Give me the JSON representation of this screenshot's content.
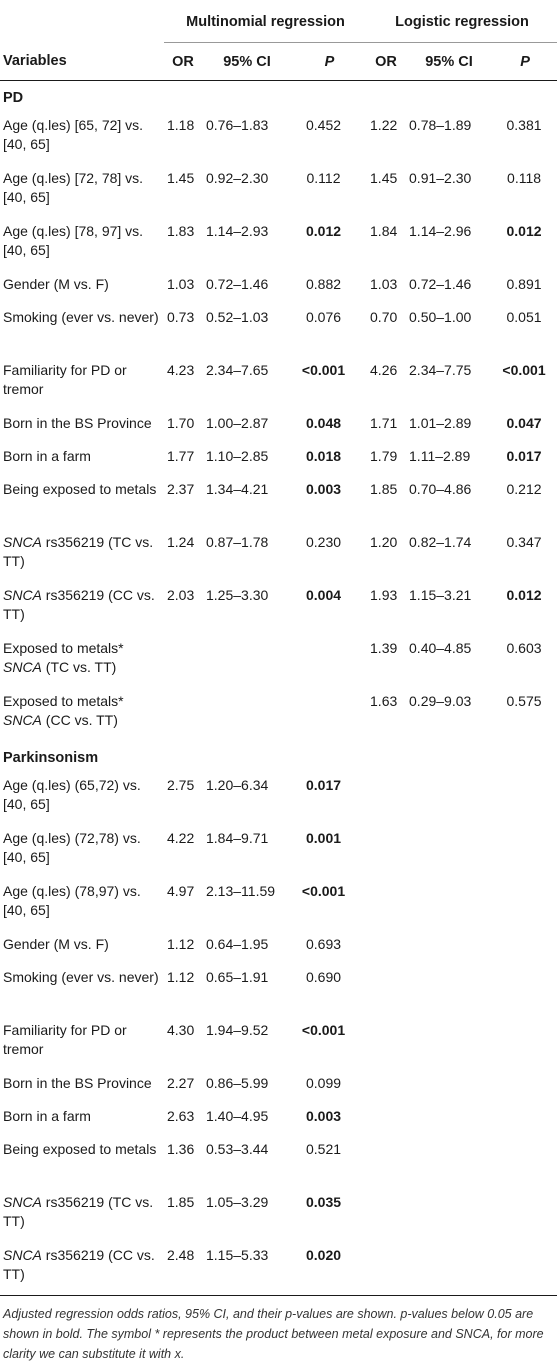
{
  "header": {
    "group_multinomial": "Multinomial regression",
    "group_logistic": "Logistic regression",
    "col_variables": "Variables",
    "col_or": "OR",
    "col_ci": "95% CI",
    "col_p": "P"
  },
  "sections": [
    {
      "title": "PD",
      "rows": [
        {
          "var_prefix": "",
          "var": "Age (q.les) [65, 72] vs. [40, 65]",
          "m_or": "1.18",
          "m_ci": "0.76–1.83",
          "m_p": "0.452",
          "m_bold": false,
          "l_or": "1.22",
          "l_ci": "0.78–1.89",
          "l_p": "0.381",
          "l_bold": false
        },
        {
          "var_prefix": "",
          "var": "Age (q.les) [72, 78] vs. [40, 65]",
          "m_or": "1.45",
          "m_ci": "0.92–2.30",
          "m_p": "0.112",
          "m_bold": false,
          "l_or": "1.45",
          "l_ci": "0.91–2.30",
          "l_p": "0.118",
          "l_bold": false
        },
        {
          "var_prefix": "",
          "var": "Age (q.les) [78, 97] vs. [40, 65]",
          "m_or": "1.83",
          "m_ci": "1.14–2.93",
          "m_p": "0.012",
          "m_bold": true,
          "l_or": "1.84",
          "l_ci": "1.14–2.96",
          "l_p": "0.012",
          "l_bold": true
        },
        {
          "var_prefix": "",
          "var": "Gender (M vs. F)",
          "m_or": "1.03",
          "m_ci": "0.72–1.46",
          "m_p": "0.882",
          "m_bold": false,
          "l_or": "1.03",
          "l_ci": "0.72–1.46",
          "l_p": "0.891",
          "l_bold": false
        },
        {
          "var_prefix": "",
          "var": "Smoking (ever vs. never)",
          "m_or": "0.73",
          "m_ci": "0.52–1.03",
          "m_p": "0.076",
          "m_bold": false,
          "l_or": "0.70",
          "l_ci": "0.50–1.00",
          "l_p": "0.051",
          "l_bold": false
        },
        {
          "var_prefix": "",
          "var": "Familiarity for PD or tremor",
          "m_or": "4.23",
          "m_ci": "2.34–7.65",
          "m_p": "<0.001",
          "m_bold": true,
          "l_or": "4.26",
          "l_ci": "2.34–7.75",
          "l_p": "<0.001",
          "l_bold": true
        },
        {
          "var_prefix": "",
          "var": "Born in the BS Province",
          "m_or": "1.70",
          "m_ci": "1.00–2.87",
          "m_p": "0.048",
          "m_bold": true,
          "l_or": "1.71",
          "l_ci": "1.01–2.89",
          "l_p": "0.047",
          "l_bold": true
        },
        {
          "var_prefix": "",
          "var": "Born in a farm",
          "m_or": "1.77",
          "m_ci": "1.10–2.85",
          "m_p": "0.018",
          "m_bold": true,
          "l_or": "1.79",
          "l_ci": "1.11–2.89",
          "l_p": "0.017",
          "l_bold": true
        },
        {
          "var_prefix": "",
          "var": "Being exposed to metals",
          "m_or": "2.37",
          "m_ci": "1.34–4.21",
          "m_p": "0.003",
          "m_bold": true,
          "l_or": "1.85",
          "l_ci": "0.70–4.86",
          "l_p": "0.212",
          "l_bold": false
        },
        {
          "var_prefix": "SNCA",
          "var": " rs356219 (TC vs. TT)",
          "m_or": "1.24",
          "m_ci": "0.87–1.78",
          "m_p": "0.230",
          "m_bold": false,
          "l_or": "1.20",
          "l_ci": "0.82–1.74",
          "l_p": "0.347",
          "l_bold": false
        },
        {
          "var_prefix": "SNCA",
          "var": " rs356219 (CC vs. TT)",
          "m_or": "2.03",
          "m_ci": "1.25–3.30",
          "m_p": "0.004",
          "m_bold": true,
          "l_or": "1.93",
          "l_ci": "1.15–3.21",
          "l_p": "0.012",
          "l_bold": true
        },
        {
          "var_prefix": "",
          "var": "Exposed to metals*",
          "var_suffix_italic": "SNCA",
          "var_suffix": " (TC vs. TT)",
          "m_or": "",
          "m_ci": "",
          "m_p": "",
          "m_bold": false,
          "l_or": "1.39",
          "l_ci": "0.40–4.85",
          "l_p": "0.603",
          "l_bold": false
        },
        {
          "var_prefix": "",
          "var": "Exposed to metals*",
          "var_suffix_italic": "SNCA",
          "var_suffix": " (CC vs. TT)",
          "m_or": "",
          "m_ci": "",
          "m_p": "",
          "m_bold": false,
          "l_or": "1.63",
          "l_ci": "0.29–9.03",
          "l_p": "0.575",
          "l_bold": false
        }
      ]
    },
    {
      "title": "Parkinsonism",
      "rows": [
        {
          "var_prefix": "",
          "var": "Age (q.les) (65,72) vs. [40, 65]",
          "m_or": "2.75",
          "m_ci": "1.20–6.34",
          "m_p": "0.017",
          "m_bold": true,
          "l_or": "",
          "l_ci": "",
          "l_p": "",
          "l_bold": false
        },
        {
          "var_prefix": "",
          "var": "Age (q.les) (72,78) vs. [40, 65]",
          "m_or": "4.22",
          "m_ci": "1.84–9.71",
          "m_p": "0.001",
          "m_bold": true,
          "l_or": "",
          "l_ci": "",
          "l_p": "",
          "l_bold": false
        },
        {
          "var_prefix": "",
          "var": "Age (q.les) (78,97) vs. [40, 65]",
          "m_or": "4.97",
          "m_ci": "2.13–11.59",
          "m_p": "<0.001",
          "m_bold": true,
          "l_or": "",
          "l_ci": "",
          "l_p": "",
          "l_bold": false
        },
        {
          "var_prefix": "",
          "var": "Gender (M vs. F)",
          "m_or": "1.12",
          "m_ci": "0.64–1.95",
          "m_p": "0.693",
          "m_bold": false,
          "l_or": "",
          "l_ci": "",
          "l_p": "",
          "l_bold": false
        },
        {
          "var_prefix": "",
          "var": "Smoking (ever vs. never)",
          "m_or": "1.12",
          "m_ci": "0.65–1.91",
          "m_p": "0.690",
          "m_bold": false,
          "l_or": "",
          "l_ci": "",
          "l_p": "",
          "l_bold": false
        },
        {
          "var_prefix": "",
          "var": "Familiarity for PD or tremor",
          "m_or": "4.30",
          "m_ci": "1.94–9.52",
          "m_p": "<0.001",
          "m_bold": true,
          "l_or": "",
          "l_ci": "",
          "l_p": "",
          "l_bold": false
        },
        {
          "var_prefix": "",
          "var": "Born in the BS Province",
          "m_or": "2.27",
          "m_ci": "0.86–5.99",
          "m_p": "0.099",
          "m_bold": false,
          "l_or": "",
          "l_ci": "",
          "l_p": "",
          "l_bold": false
        },
        {
          "var_prefix": "",
          "var": "Born in a farm",
          "m_or": "2.63",
          "m_ci": "1.40–4.95",
          "m_p": "0.003",
          "m_bold": true,
          "l_or": "",
          "l_ci": "",
          "l_p": "",
          "l_bold": false
        },
        {
          "var_prefix": "",
          "var": "Being exposed to metals",
          "m_or": "1.36",
          "m_ci": "0.53–3.44",
          "m_p": "0.521",
          "m_bold": false,
          "l_or": "",
          "l_ci": "",
          "l_p": "",
          "l_bold": false
        },
        {
          "var_prefix": "SNCA",
          "var": " rs356219 (TC vs. TT)",
          "m_or": "1.85",
          "m_ci": "1.05–3.29",
          "m_p": "0.035",
          "m_bold": true,
          "l_or": "",
          "l_ci": "",
          "l_p": "",
          "l_bold": false
        },
        {
          "var_prefix": "SNCA",
          "var": " rs356219 (CC vs. TT)",
          "m_or": "2.48",
          "m_ci": "1.15–5.33",
          "m_p": "0.020",
          "m_bold": true,
          "l_or": "",
          "l_ci": "",
          "l_p": "",
          "l_bold": false
        }
      ]
    }
  ],
  "footnote": "Adjusted regression odds ratios, 95% CI, and their p-values are shown. p-values below 0.05 are shown in bold. The symbol * represents the product between metal exposure and SNCA, for more clarity we can substitute it with x."
}
